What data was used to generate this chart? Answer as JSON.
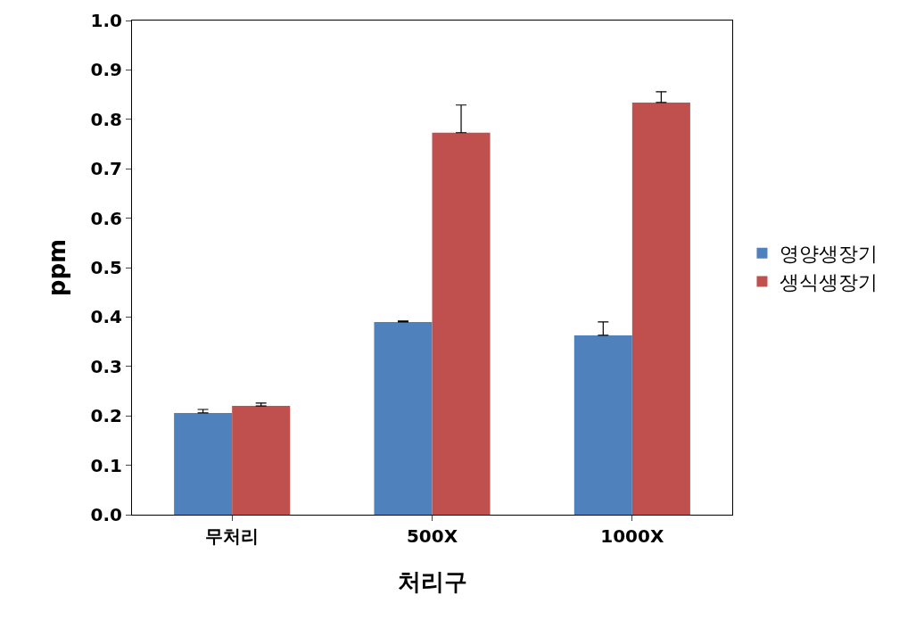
{
  "chart_data": {
    "type": "bar",
    "xlabel": "처리구",
    "ylabel": "ppm",
    "categories": [
      "무처리",
      "500X",
      "1000X"
    ],
    "series": [
      {
        "name": "영양생장기",
        "color": "#4f81bd",
        "values": [
          0.206,
          0.39,
          0.363
        ],
        "errors": [
          [
            0.206,
            0.213
          ],
          [
            0.39,
            0.392
          ],
          [
            0.363,
            0.39
          ]
        ]
      },
      {
        "name": "생식생장기",
        "color": "#c0504d",
        "values": [
          0.22,
          0.773,
          0.834
        ],
        "errors": [
          [
            0.22,
            0.226
          ],
          [
            0.773,
            0.829
          ],
          [
            0.834,
            0.856
          ]
        ]
      }
    ],
    "ylim": [
      0,
      1.0
    ],
    "yticks": [
      {
        "value": 0,
        "label": "0.0"
      },
      {
        "value": 0.1,
        "label": "0.1"
      },
      {
        "value": 0.2,
        "label": "0.2"
      },
      {
        "value": 0.3,
        "label": "0.3"
      },
      {
        "value": 0.4,
        "label": "0.4"
      },
      {
        "value": 0.5,
        "label": "0.5"
      },
      {
        "value": 0.6,
        "label": "0.6"
      },
      {
        "value": 0.7,
        "label": "0.7"
      },
      {
        "value": 0.8,
        "label": "0.8"
      },
      {
        "value": 0.9,
        "label": "0.9"
      },
      {
        "value": 1.0,
        "label": "1.0"
      }
    ],
    "legend": "right"
  }
}
